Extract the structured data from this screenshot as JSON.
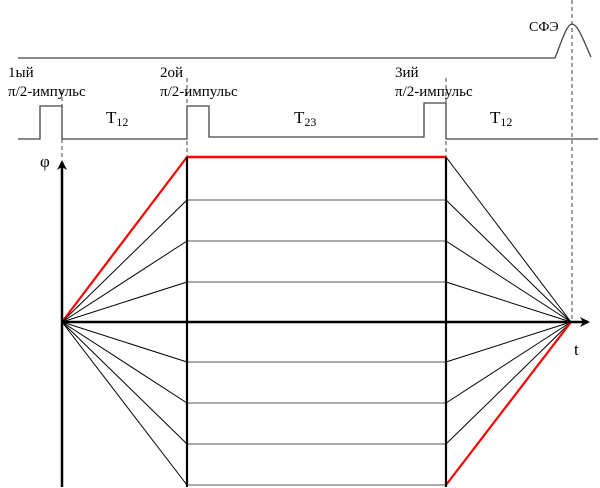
{
  "pulses": [
    {
      "line1": "1ый",
      "line2": "π/2-импульс"
    },
    {
      "line1": "2ой",
      "line2": "π/2-импульс"
    },
    {
      "line1": "3ий",
      "line2": "π/2-импульс"
    }
  ],
  "intervals": [
    {
      "main": "T",
      "sub": "12"
    },
    {
      "main": "T",
      "sub": "23"
    },
    {
      "main": "T",
      "sub": "12"
    }
  ],
  "echo_label": "СФЭ",
  "axis_phi": "φ",
  "axis_t": "t",
  "colors": {
    "lines": "#000000",
    "highlight": "#ff0000",
    "signal": "#333333"
  }
}
